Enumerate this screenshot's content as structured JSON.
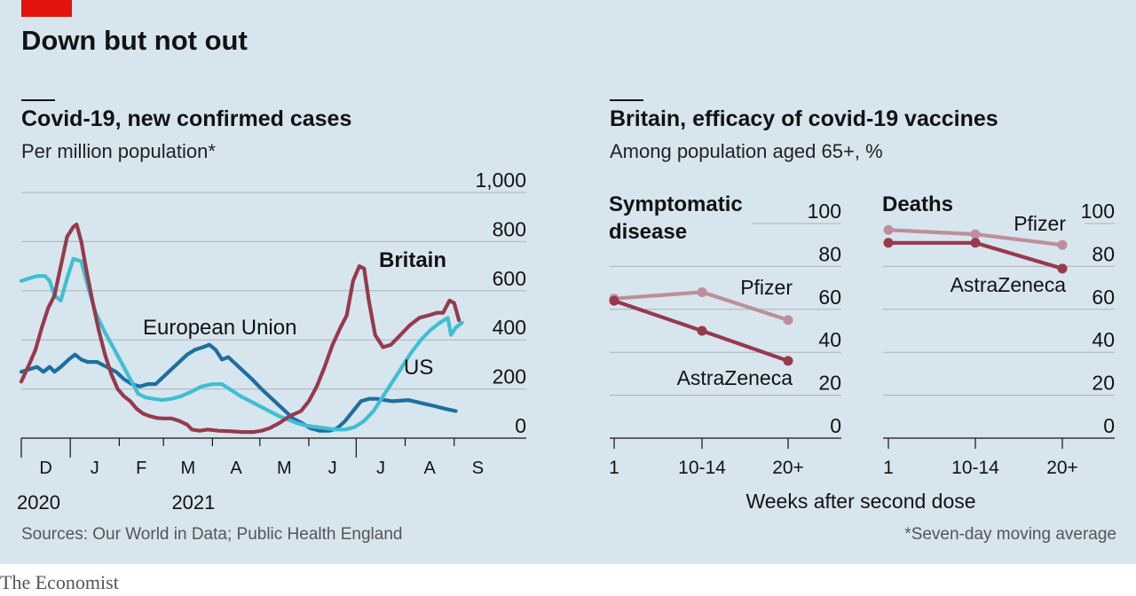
{
  "header": {
    "title": "Down but not out"
  },
  "footer": {
    "sources": "Sources: Our World in Data; Public Health England",
    "note": "*Seven-day moving average",
    "brand": "The Economist"
  },
  "colors": {
    "background": "#d7e5ee",
    "britain": "#963a4c",
    "eu": "#1d6fa0",
    "us": "#3ebfd3",
    "pfizer": "#bd8f98",
    "astrazeneca": "#963a4c",
    "grid": "#a8b3ba",
    "accent_red": "#e3120b"
  },
  "chart_data": [
    {
      "type": "line",
      "title": "Covid-19, new confirmed cases",
      "subtitle": "Per million population*",
      "ylim": [
        0,
        1000
      ],
      "yticks": [
        "1,000",
        "800",
        "600",
        "400",
        "200",
        "0"
      ],
      "ytick_values": [
        1000,
        800,
        600,
        400,
        200,
        0
      ],
      "month_labels": [
        "D",
        "J",
        "F",
        "M",
        "A",
        "M",
        "J",
        "J",
        "A",
        "S"
      ],
      "month_start_days": [
        0,
        31,
        62,
        90,
        121,
        151,
        182,
        212,
        243,
        274
      ],
      "year_labels": [
        {
          "text": "2020",
          "day": 0
        },
        {
          "text": "2021",
          "day": 98
        }
      ],
      "x_unit": "days since 1 December 2020",
      "grid": true,
      "series": [
        {
          "name": "Britain",
          "color_key": "britain",
          "bold_label": true,
          "points": [
            [
              0,
              230
            ],
            [
              5,
              300
            ],
            [
              9,
              360
            ],
            [
              13,
              450
            ],
            [
              17,
              530
            ],
            [
              21,
              580
            ],
            [
              25,
              700
            ],
            [
              29,
              820
            ],
            [
              33,
              860
            ],
            [
              35,
              870
            ],
            [
              38,
              800
            ],
            [
              41,
              690
            ],
            [
              45,
              560
            ],
            [
              49,
              440
            ],
            [
              53,
              340
            ],
            [
              57,
              260
            ],
            [
              61,
              200
            ],
            [
              65,
              170
            ],
            [
              69,
              150
            ],
            [
              73,
              120
            ],
            [
              77,
              100
            ],
            [
              81,
              90
            ],
            [
              86,
              82
            ],
            [
              90,
              80
            ],
            [
              95,
              80
            ],
            [
              100,
              70
            ],
            [
              105,
              55
            ],
            [
              108,
              35
            ],
            [
              113,
              30
            ],
            [
              118,
              35
            ],
            [
              125,
              30
            ],
            [
              132,
              28
            ],
            [
              140,
              25
            ],
            [
              147,
              25
            ],
            [
              152,
              30
            ],
            [
              157,
              40
            ],
            [
              163,
              60
            ],
            [
              170,
              90
            ],
            [
              177,
              110
            ],
            [
              182,
              150
            ],
            [
              187,
              210
            ],
            [
              192,
              290
            ],
            [
              197,
              380
            ],
            [
              202,
              450
            ],
            [
              206,
              500
            ],
            [
              210,
              640
            ],
            [
              214,
              700
            ],
            [
              217,
              690
            ],
            [
              220,
              560
            ],
            [
              224,
              420
            ],
            [
              229,
              370
            ],
            [
              234,
              380
            ],
            [
              240,
              420
            ],
            [
              246,
              460
            ],
            [
              252,
              490
            ],
            [
              258,
              500
            ],
            [
              263,
              510
            ],
            [
              267,
              510
            ],
            [
              271,
              560
            ],
            [
              274,
              550
            ],
            [
              277,
              480
            ]
          ]
        },
        {
          "name": "European Union",
          "color_key": "eu",
          "bold_label": false,
          "points": [
            [
              0,
              270
            ],
            [
              5,
              280
            ],
            [
              10,
              290
            ],
            [
              14,
              270
            ],
            [
              18,
              290
            ],
            [
              21,
              270
            ],
            [
              25,
              290
            ],
            [
              30,
              320
            ],
            [
              34,
              340
            ],
            [
              38,
              320
            ],
            [
              42,
              310
            ],
            [
              48,
              310
            ],
            [
              54,
              290
            ],
            [
              60,
              270
            ],
            [
              65,
              240
            ],
            [
              70,
              220
            ],
            [
              75,
              210
            ],
            [
              80,
              220
            ],
            [
              85,
              220
            ],
            [
              90,
              250
            ],
            [
              95,
              280
            ],
            [
              100,
              310
            ],
            [
              105,
              340
            ],
            [
              110,
              360
            ],
            [
              115,
              370
            ],
            [
              119,
              380
            ],
            [
              123,
              360
            ],
            [
              127,
              320
            ],
            [
              131,
              330
            ],
            [
              136,
              300
            ],
            [
              141,
              270
            ],
            [
              146,
              240
            ],
            [
              152,
              200
            ],
            [
              157,
              170
            ],
            [
              162,
              140
            ],
            [
              167,
              110
            ],
            [
              172,
              80
            ],
            [
              178,
              60
            ],
            [
              183,
              40
            ],
            [
              189,
              30
            ],
            [
              195,
              30
            ],
            [
              200,
              40
            ],
            [
              205,
              70
            ],
            [
              210,
              110
            ],
            [
              215,
              150
            ],
            [
              220,
              160
            ],
            [
              225,
              160
            ],
            [
              235,
              150
            ],
            [
              245,
              155
            ],
            [
              255,
              140
            ],
            [
              262,
              130
            ],
            [
              268,
              120
            ],
            [
              275,
              110
            ]
          ]
        },
        {
          "name": "US",
          "color_key": "us",
          "bold_label": false,
          "points": [
            [
              0,
              640
            ],
            [
              5,
              650
            ],
            [
              10,
              660
            ],
            [
              15,
              660
            ],
            [
              18,
              640
            ],
            [
              21,
              580
            ],
            [
              25,
              560
            ],
            [
              29,
              650
            ],
            [
              33,
              730
            ],
            [
              38,
              720
            ],
            [
              42,
              620
            ],
            [
              47,
              510
            ],
            [
              53,
              430
            ],
            [
              59,
              360
            ],
            [
              64,
              300
            ],
            [
              69,
              240
            ],
            [
              74,
              180
            ],
            [
              79,
              165
            ],
            [
              84,
              160
            ],
            [
              89,
              155
            ],
            [
              95,
              160
            ],
            [
              101,
              170
            ],
            [
              108,
              190
            ],
            [
              114,
              210
            ],
            [
              121,
              220
            ],
            [
              127,
              220
            ],
            [
              133,
              195
            ],
            [
              139,
              170
            ],
            [
              145,
              150
            ],
            [
              151,
              130
            ],
            [
              157,
              110
            ],
            [
              163,
              90
            ],
            [
              169,
              75
            ],
            [
              175,
              60
            ],
            [
              181,
              50
            ],
            [
              187,
              45
            ],
            [
              193,
              40
            ],
            [
              199,
              35
            ],
            [
              205,
              35
            ],
            [
              211,
              45
            ],
            [
              217,
              70
            ],
            [
              223,
              110
            ],
            [
              229,
              170
            ],
            [
              235,
              230
            ],
            [
              241,
              290
            ],
            [
              247,
              350
            ],
            [
              253,
              400
            ],
            [
              259,
              440
            ],
            [
              265,
              470
            ],
            [
              270,
              490
            ],
            [
              272,
              420
            ],
            [
              275,
              450
            ],
            [
              279,
              470
            ]
          ]
        }
      ],
      "annotations": [
        {
          "text": "Britain",
          "series": "Britain"
        },
        {
          "text": "European Union",
          "series": "European Union"
        },
        {
          "text": "US",
          "series": "US"
        }
      ]
    },
    {
      "type": "line",
      "title": "Britain, efficacy of covid-19 vaccines",
      "subtitle": "Among population aged 65+, %",
      "xlabel": "Weeks after second dose",
      "categories": [
        "1",
        "10-14",
        "20+"
      ],
      "ylim": [
        0,
        100
      ],
      "yticks": [
        "100",
        "80",
        "60",
        "40",
        "20",
        "0"
      ],
      "ytick_values": [
        100,
        80,
        60,
        40,
        20,
        0
      ],
      "panels": [
        {
          "name": "Symptomatic disease",
          "title_lines": [
            "Symptomatic",
            "disease"
          ],
          "series": [
            {
              "name": "Pfizer",
              "color_key": "pfizer",
              "values": [
                65,
                68,
                55
              ]
            },
            {
              "name": "AstraZeneca",
              "color_key": "astrazeneca",
              "values": [
                64,
                50,
                36
              ]
            }
          ]
        },
        {
          "name": "Deaths",
          "title_lines": [
            "Deaths"
          ],
          "series": [
            {
              "name": "Pfizer",
              "color_key": "pfizer",
              "values": [
                97,
                95,
                90
              ]
            },
            {
              "name": "AstraZeneca",
              "color_key": "astrazeneca",
              "values": [
                91,
                91,
                79
              ]
            }
          ]
        }
      ]
    }
  ]
}
